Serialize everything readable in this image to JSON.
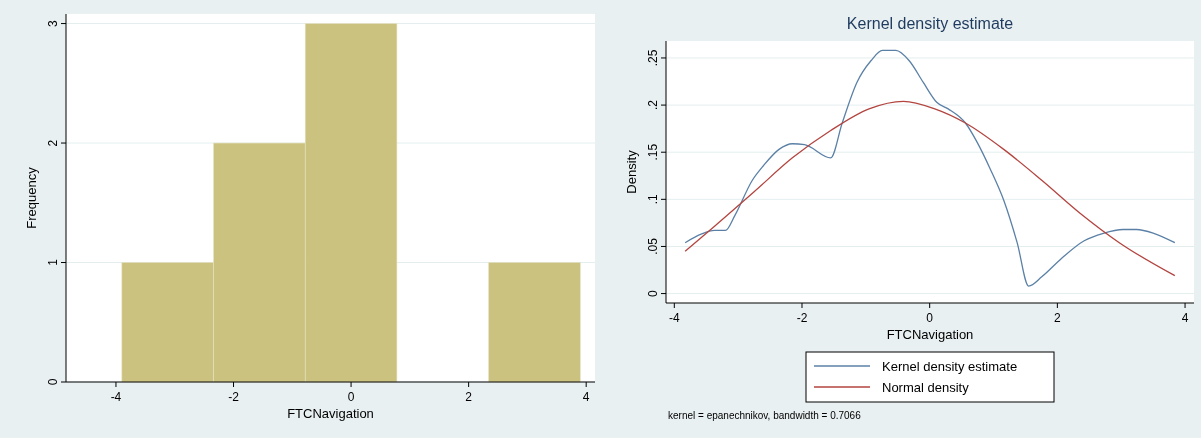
{
  "chart_data": [
    {
      "type": "histogram",
      "xlabel": "FTCNavigation",
      "ylabel": "Frequency",
      "bins": [
        -3.9,
        -2.34,
        -0.78,
        0.78,
        2.34,
        3.9
      ],
      "values": [
        1,
        2,
        3,
        0,
        1
      ],
      "color": "#cbc27f",
      "xlim": [
        -4.85,
        4.15
      ],
      "ylim": [
        0,
        3.08
      ],
      "xticks": [
        -4,
        -2,
        0,
        2,
        4
      ],
      "yticks": [
        0,
        1,
        2,
        3
      ],
      "grid": "y"
    },
    {
      "type": "line",
      "title": "Kernel density estimate",
      "xlabel": "FTCNavigation",
      "ylabel": "Density",
      "xlim": [
        -4.13,
        4.14
      ],
      "ylim": [
        -0.01,
        0.268
      ],
      "xticks": [
        -4,
        -2,
        0,
        2,
        4
      ],
      "yticks": [
        {
          "value": 0,
          "label": "0"
        },
        {
          "value": 0.05,
          "label": ".05"
        },
        {
          "value": 0.1,
          "label": ".1"
        },
        {
          "value": 0.15,
          "label": ".15"
        },
        {
          "value": 0.2,
          "label": ".2"
        },
        {
          "value": 0.25,
          "label": ".25"
        }
      ],
      "grid": "y",
      "legend": "bottom",
      "line_style": "solid",
      "annotations": [
        "kernel = epanechnikov, bandwidth = 0.7066"
      ],
      "series": [
        {
          "name": "Kernel density estimate",
          "color": "#5b80a6",
          "x": [
            -3.83,
            -3.58,
            -3.37,
            -3.2,
            -3.05,
            -2.78,
            -2.6,
            -2.36,
            -2.15,
            -1.96,
            -1.55,
            -1.37,
            -1.14,
            -0.92,
            -0.74,
            -0.53,
            -0.32,
            -0.1,
            0.11,
            0.29,
            0.56,
            0.74,
            0.95,
            1.16,
            1.37,
            1.55,
            1.76,
            2.06,
            2.42,
            2.72,
            3.03,
            3.24,
            3.51,
            3.84
          ],
          "values": [
            0.054,
            0.063,
            0.067,
            0.067,
            0.083,
            0.12,
            0.136,
            0.153,
            0.159,
            0.158,
            0.144,
            0.181,
            0.224,
            0.247,
            0.258,
            0.258,
            0.247,
            0.224,
            0.203,
            0.196,
            0.181,
            0.161,
            0.132,
            0.099,
            0.054,
            0.008,
            0.018,
            0.037,
            0.056,
            0.064,
            0.068,
            0.068,
            0.064,
            0.054
          ]
        },
        {
          "name": "Normal density",
          "color": "#b3443f",
          "x": [
            -3.83,
            -3.36,
            -2.75,
            -2.15,
            -1.55,
            -0.95,
            -0.41,
            0.08,
            0.56,
            1.16,
            1.76,
            2.36,
            2.97,
            3.84
          ],
          "values": [
            0.045,
            0.072,
            0.108,
            0.144,
            0.173,
            0.196,
            0.204,
            0.196,
            0.181,
            0.153,
            0.12,
            0.085,
            0.054,
            0.019
          ]
        }
      ]
    }
  ]
}
